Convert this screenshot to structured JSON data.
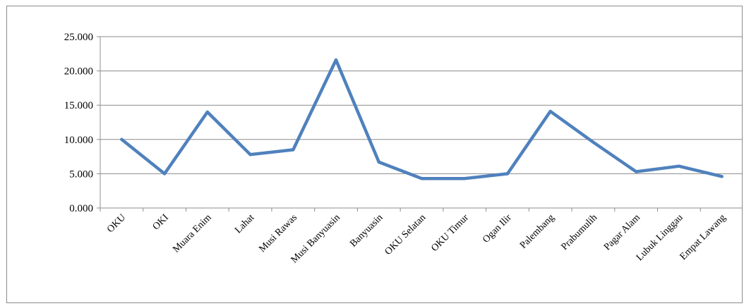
{
  "chart_data": {
    "type": "line",
    "title": "",
    "xlabel": "",
    "ylabel": "",
    "categories": [
      "OKU",
      "OKI",
      "Muara Enim",
      "Lahat",
      "Musi Rawas",
      "Musi Banyuasin",
      "Banyuasin",
      "OKU Selatan",
      "OKU Timur",
      "Ogan Ilir",
      "Palembang",
      "Prabumulih",
      "Pagar Alam",
      "Lubuk Linggau",
      "Empat Lawang"
    ],
    "series": [
      {
        "values": [
          10.0,
          5.0,
          14.0,
          7.8,
          8.5,
          21.6,
          6.7,
          4.3,
          4.3,
          5.0,
          14.1,
          9.6,
          5.3,
          6.1,
          4.6
        ]
      }
    ],
    "ylim": [
      0,
      25
    ],
    "yticks": [
      0,
      5,
      10,
      15,
      20,
      25
    ],
    "ytick_labels": [
      "0.000",
      "5.000",
      "10.000",
      "15.000",
      "20.000",
      "25.000"
    ],
    "grid": true,
    "legend": "none",
    "line_color": "#4f81bd"
  }
}
